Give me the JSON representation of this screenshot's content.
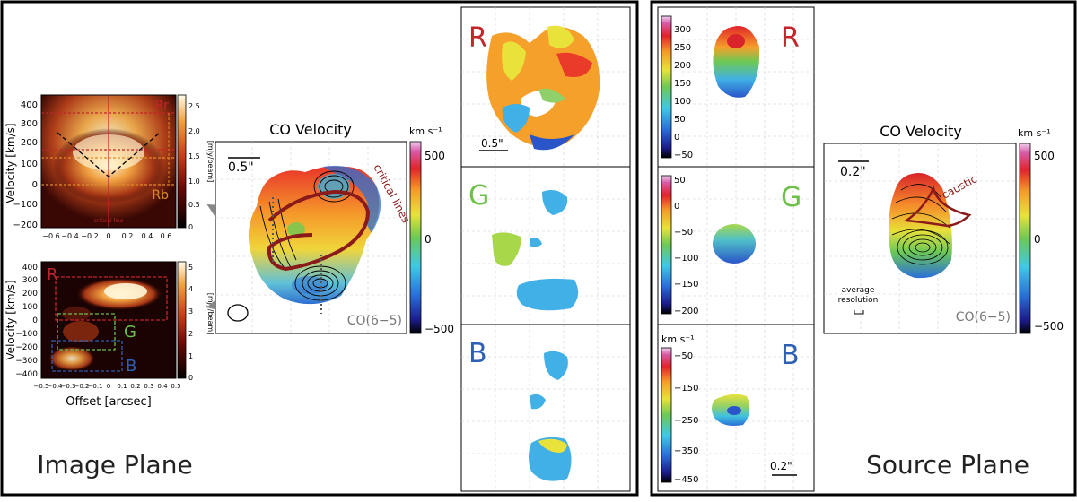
{
  "image_plane": {
    "title": "Image Plane",
    "pv_top": {
      "labels": [
        "Rr",
        "Rb"
      ],
      "critical_line": "critical line",
      "ylabel": "Velocity [km/s]",
      "yticks": [
        "400",
        "300",
        "200",
        "100",
        "0",
        "−100",
        "−200"
      ],
      "xticks": [
        "−0.6",
        "−0.4",
        "−0.2",
        "0",
        "0.2",
        "0.4",
        "0.6"
      ],
      "cbar_ticks": [
        "2.5",
        "2.0",
        "1.5",
        "1.0",
        "0.5",
        "0"
      ],
      "cbar_label": "[mJy/beam]"
    },
    "pv_bottom": {
      "labels": [
        "R",
        "G",
        "B"
      ],
      "ylabel": "Velocity [km/s]",
      "xlabel": "Offset [arcsec]",
      "yticks": [
        "400",
        "300",
        "200",
        "100",
        "0",
        "−100",
        "−200",
        "−300",
        "−400"
      ],
      "xticks": [
        "−0.5",
        "−0.4",
        "−0.3",
        "−0.2",
        "−0.1",
        "0",
        "0.1",
        "0.2",
        "0.3",
        "0.4",
        "0.5"
      ],
      "cbar_ticks": [
        "5",
        "4",
        "3",
        "2",
        "1",
        "0"
      ],
      "cbar_label": "[mJy/beam]"
    },
    "velocity_map": {
      "title": "CO Velocity",
      "scale": "0.5\"",
      "annotation": "critical lines",
      "line": "CO(6−5)",
      "unit": "km s⁻¹",
      "cbar_ticks": [
        "500",
        "0",
        "−500"
      ]
    },
    "channels": {
      "labels": [
        "R",
        "G",
        "B"
      ],
      "scale": "0.5\""
    }
  },
  "source_plane": {
    "title": "Source Plane",
    "channels": {
      "labels": [
        "R",
        "G",
        "B"
      ],
      "r_ticks": [
        "300",
        "250",
        "200",
        "150",
        "100",
        "50",
        "0",
        "−50"
      ],
      "g_ticks": [
        "50",
        "0",
        "−50",
        "−100",
        "−150",
        "−200"
      ],
      "b_unit": "km s⁻¹",
      "b_ticks": [
        "−50",
        "−150",
        "−250",
        "−350",
        "−450"
      ],
      "scale": "0.2\""
    },
    "velocity_map": {
      "title": "CO Velocity",
      "scale": "0.2\"",
      "annotation": "caustic",
      "resolution_label_1": "average",
      "resolution_label_2": "resolution",
      "line": "CO(6−5)",
      "unit": "km s⁻¹",
      "cbar_ticks": [
        "500",
        "0",
        "−500"
      ]
    }
  },
  "colors": {
    "red_label": "#c0262b",
    "green_label": "#6cc04a",
    "blue_label": "#2f5fb3",
    "dark_red": "#8b1a1a"
  }
}
